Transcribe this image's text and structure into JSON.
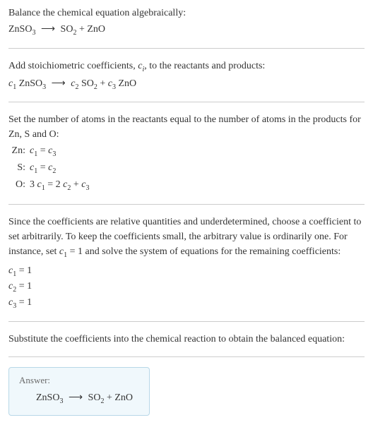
{
  "section1": {
    "title": "Balance the chemical equation algebraically:",
    "eq_lhs": "ZnSO",
    "eq_lhs_sub": "3",
    "arrow": "⟶",
    "eq_rhs1": "SO",
    "eq_rhs1_sub": "2",
    "plus": " + ",
    "eq_rhs2": "ZnO"
  },
  "section2": {
    "title_a": "Add stoichiometric coefficients, ",
    "ci": "c",
    "ci_sub": "i",
    "title_b": ", to the reactants and products:",
    "c1": "c",
    "c1_sub": "1",
    "sp1": " ZnSO",
    "sp1_sub": "3",
    "arrow": "⟶",
    "c2": "c",
    "c2_sub": "2",
    "sp2": " SO",
    "sp2_sub": "2",
    "plus": " + ",
    "c3": "c",
    "c3_sub": "3",
    "sp3": " ZnO"
  },
  "section3": {
    "title": "Set the number of atoms in the reactants equal to the number of atoms in the products for Zn, S and O:",
    "rows": {
      "zn_label": "Zn:",
      "zn_eq_a": "c",
      "zn_eq_a_sub": "1",
      "zn_eq_mid": " = ",
      "zn_eq_b": "c",
      "zn_eq_b_sub": "3",
      "s_label": "S:",
      "s_eq_a": "c",
      "s_eq_a_sub": "1",
      "s_eq_mid": " = ",
      "s_eq_b": "c",
      "s_eq_b_sub": "2",
      "o_label": "O:",
      "o_eq_a": "3 ",
      "o_eq_ac": "c",
      "o_eq_a_sub": "1",
      "o_eq_mid": " = 2 ",
      "o_eq_bc": "c",
      "o_eq_b_sub": "2",
      "o_eq_plus": " + ",
      "o_eq_cc": "c",
      "o_eq_c_sub": "3"
    }
  },
  "section4": {
    "title_a": "Since the coefficients are relative quantities and underdetermined, choose a coefficient to set arbitrarily. To keep the coefficients small, the arbitrary value is ordinarily one. For instance, set ",
    "c1": "c",
    "c1_sub": "1",
    "title_b": " = 1 and solve the system of equations for the remaining coefficients:",
    "r1a": "c",
    "r1_sub": "1",
    "r1b": " = 1",
    "r2a": "c",
    "r2_sub": "2",
    "r2b": " = 1",
    "r3a": "c",
    "r3_sub": "3",
    "r3b": " = 1"
  },
  "section5": {
    "title": "Substitute the coefficients into the chemical reaction to obtain the balanced equation:"
  },
  "answer": {
    "label": "Answer:",
    "lhs": "ZnSO",
    "lhs_sub": "3",
    "arrow": "⟶",
    "rhs1": "SO",
    "rhs1_sub": "2",
    "plus": " + ",
    "rhs2": "ZnO"
  },
  "colors": {
    "text": "#333333",
    "border": "#cccccc",
    "answer_bg": "#f0f8fc",
    "answer_border": "#b8d8e8",
    "answer_label": "#6a6a6a"
  }
}
